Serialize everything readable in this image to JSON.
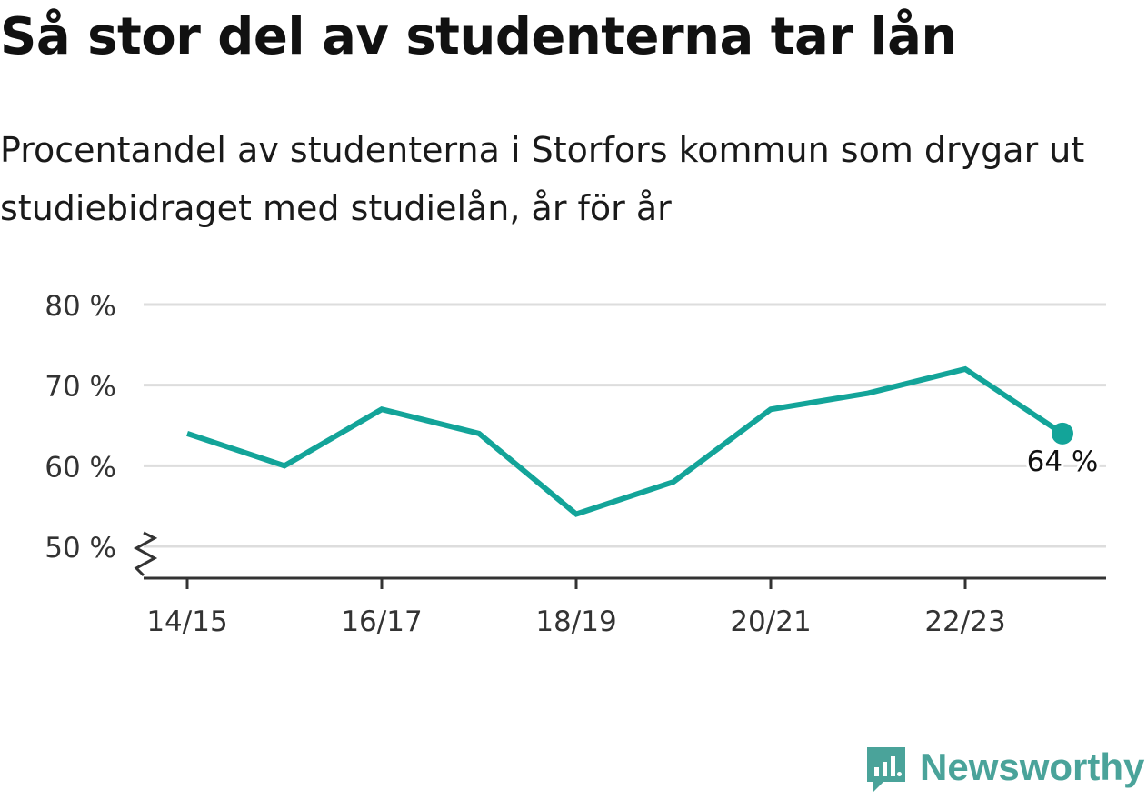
{
  "title": "Så stor del av studenterna tar lån",
  "subtitle": "Procentandel av studenterna i Storfors kommun som drygar ut studiebidraget med studielån, år för år",
  "brand": {
    "name": "Newsworthy",
    "color": "#4aa39a"
  },
  "chart_data": {
    "type": "line",
    "x": [
      "14/15",
      "15/16",
      "16/17",
      "17/18",
      "18/19",
      "19/20",
      "20/21",
      "21/22",
      "22/23",
      "23/24"
    ],
    "xticks": [
      "14/15",
      "16/17",
      "18/19",
      "20/21",
      "22/23"
    ],
    "series": [
      {
        "values": [
          64,
          60,
          67,
          64,
          54,
          58,
          67,
          69,
          72,
          64
        ],
        "color": "#13a499"
      }
    ],
    "yticks": [
      50,
      60,
      70,
      80
    ],
    "ytick_labels": [
      "50 %",
      "60 %",
      "70 %",
      "80 %"
    ],
    "ylim": [
      50,
      80
    ],
    "axis_break": true,
    "grid": true,
    "annotation": {
      "label": "64 %",
      "x": "23/24",
      "y": 64
    }
  }
}
